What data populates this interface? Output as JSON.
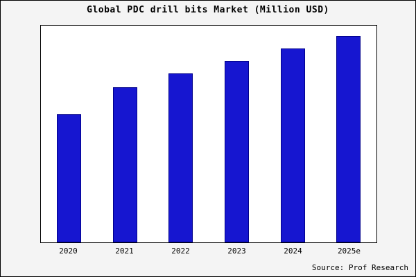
{
  "title": "Global PDC drill bits Market (Million USD)",
  "source": "Source: Prof Research",
  "colors": {
    "bar_fill": "#1616D0",
    "bar_border": "#00008B",
    "background": "#F4F4F4",
    "plot_background": "#FFFFFF"
  },
  "chart_data": {
    "type": "bar",
    "categories": [
      "2020",
      "2021",
      "2022",
      "2023",
      "2024",
      "2025e"
    ],
    "values": [
      62,
      75,
      82,
      88,
      94,
      100
    ],
    "title": "Global PDC drill bits Market (Million USD)",
    "xlabel": "",
    "ylabel": "",
    "ylim": [
      0,
      105
    ],
    "grid": false,
    "legend": false,
    "annotation": "Source: Prof Research"
  }
}
